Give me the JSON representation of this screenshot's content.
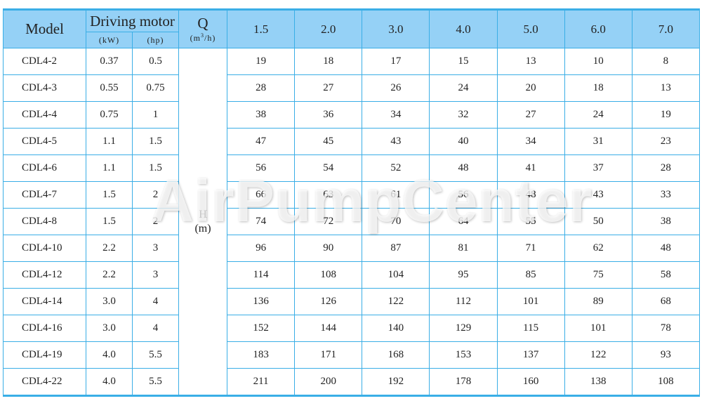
{
  "header": {
    "model": "Model",
    "driving_motor": "Driving motor",
    "kw": "(kW)",
    "hp": "(hp)",
    "q": "Q",
    "q_unit_prefix": "(m",
    "q_unit_sup": "3",
    "q_unit_suffix": "/h)",
    "flows": [
      "1.5",
      "2.0",
      "3.0",
      "4.0",
      "5.0",
      "6.0",
      "7.0"
    ]
  },
  "h_label": "H",
  "h_unit": "(m)",
  "rows": [
    {
      "model": "CDL4-2",
      "kw": "0.37",
      "hp": "0.5",
      "h": [
        "19",
        "18",
        "17",
        "15",
        "13",
        "10",
        "8"
      ]
    },
    {
      "model": "CDL4-3",
      "kw": "0.55",
      "hp": "0.75",
      "h": [
        "28",
        "27",
        "26",
        "24",
        "20",
        "18",
        "13"
      ]
    },
    {
      "model": "CDL4-4",
      "kw": "0.75",
      "hp": "1",
      "h": [
        "38",
        "36",
        "34",
        "32",
        "27",
        "24",
        "19"
      ]
    },
    {
      "model": "CDL4-5",
      "kw": "1.1",
      "hp": "1.5",
      "h": [
        "47",
        "45",
        "43",
        "40",
        "34",
        "31",
        "23"
      ]
    },
    {
      "model": "CDL4-6",
      "kw": "1.1",
      "hp": "1.5",
      "h": [
        "56",
        "54",
        "52",
        "48",
        "41",
        "37",
        "28"
      ]
    },
    {
      "model": "CDL4-7",
      "kw": "1.5",
      "hp": "2",
      "h": [
        "66",
        "63",
        "61",
        "56",
        "48",
        "43",
        "33"
      ]
    },
    {
      "model": "CDL4-8",
      "kw": "1.5",
      "hp": "2",
      "h": [
        "74",
        "72",
        "70",
        "64",
        "55",
        "50",
        "38"
      ]
    },
    {
      "model": "CDL4-10",
      "kw": "2.2",
      "hp": "3",
      "h": [
        "96",
        "90",
        "87",
        "81",
        "71",
        "62",
        "48"
      ]
    },
    {
      "model": "CDL4-12",
      "kw": "2.2",
      "hp": "3",
      "h": [
        "114",
        "108",
        "104",
        "95",
        "85",
        "75",
        "58"
      ]
    },
    {
      "model": "CDL4-14",
      "kw": "3.0",
      "hp": "4",
      "h": [
        "136",
        "126",
        "122",
        "112",
        "101",
        "89",
        "68"
      ]
    },
    {
      "model": "CDL4-16",
      "kw": "3.0",
      "hp": "4",
      "h": [
        "152",
        "144",
        "140",
        "129",
        "115",
        "101",
        "78"
      ]
    },
    {
      "model": "CDL4-19",
      "kw": "4.0",
      "hp": "5.5",
      "h": [
        "183",
        "171",
        "168",
        "153",
        "137",
        "122",
        "93"
      ]
    },
    {
      "model": "CDL4-22",
      "kw": "4.0",
      "hp": "5.5",
      "h": [
        "211",
        "200",
        "192",
        "178",
        "160",
        "138",
        "108"
      ]
    }
  ],
  "watermark": "AirPumpCenter",
  "colors": {
    "header_bg": "#95d1f6",
    "border": "#3aaee6"
  }
}
